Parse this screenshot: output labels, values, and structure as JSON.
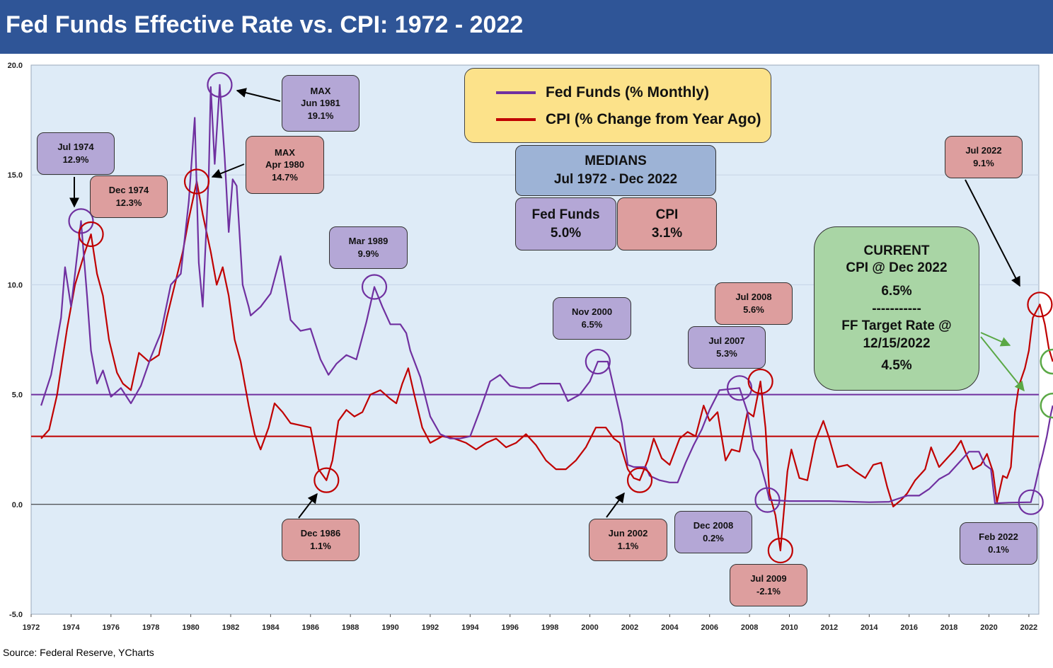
{
  "title": "Fed Funds Effective Rate vs. CPI: 1972 - 2022",
  "source": "Source: Federal Reserve, YCharts",
  "colors": {
    "title_bar": "#2f5597",
    "plot_bg": "#deebf7",
    "fed_funds": "#7030a0",
    "cpi": "#c00000",
    "green": "#5aa845"
  },
  "legend": {
    "fed_funds": "Fed Funds (% Monthly)",
    "cpi": "CPI (% Change from Year Ago)"
  },
  "medians": {
    "title_line1": "MEDIANS",
    "title_line2": "Jul 1972 - Dec 2022",
    "fed_label": "Fed Funds",
    "fed_value": "5.0%",
    "cpi_label": "CPI",
    "cpi_value": "3.1%"
  },
  "current": {
    "line1": "CURRENT",
    "line2": "CPI @ Dec 2022",
    "line3": "6.5%",
    "line4": "-----------",
    "line5": "FF Target Rate @",
    "line6": "12/15/2022",
    "line7": "4.5%"
  },
  "annotations": {
    "max_ff": {
      "l1": "MAX",
      "l2": "Jun 1981",
      "l3": "19.1%"
    },
    "max_cpi": {
      "l1": "MAX",
      "l2": "Apr 1980",
      "l3": "14.7%"
    },
    "jul1974": {
      "l1": "Jul 1974",
      "l2": "12.9%"
    },
    "dec1974": {
      "l1": "Dec 1974",
      "l2": "12.3%"
    },
    "mar1989": {
      "l1": "Mar 1989",
      "l2": "9.9%"
    },
    "dec1986": {
      "l1": "Dec 1986",
      "l2": "1.1%"
    },
    "nov2000": {
      "l1": "Nov 2000",
      "l2": "6.5%"
    },
    "jun2002": {
      "l1": "Jun 2002",
      "l2": "1.1%"
    },
    "jul2007": {
      "l1": "Jul 2007",
      "l2": "5.3%"
    },
    "jul2008": {
      "l1": "Jul  2008",
      "l2": "5.6%"
    },
    "dec2008": {
      "l1": "Dec 2008",
      "l2": "0.2%"
    },
    "jul2009": {
      "l1": "Jul  2009",
      "l2": "-2.1%"
    },
    "jul2022": {
      "l1": "Jul  2022",
      "l2": "9.1%"
    },
    "feb2022": {
      "l1": "Feb 2022",
      "l2": "0.1%"
    }
  },
  "chart_data": {
    "type": "line",
    "xlim": [
      1972,
      2022.5
    ],
    "ylim": [
      -5,
      20
    ],
    "y_ticks": [
      "-5.0",
      "0.0",
      "5.0",
      "10.0",
      "15.0",
      "20.0"
    ],
    "x_ticks": [
      "1972",
      "1974",
      "1976",
      "1978",
      "1980",
      "1982",
      "1984",
      "1986",
      "1988",
      "1990",
      "1992",
      "1994",
      "1996",
      "1998",
      "2000",
      "2002",
      "2004",
      "2006",
      "2008",
      "2010",
      "2012",
      "2014",
      "2016",
      "2018",
      "2020",
      "2022"
    ],
    "grid": true,
    "median_lines": [
      {
        "name": "Fed Funds median",
        "value": 5.0
      },
      {
        "name": "CPI median",
        "value": 3.1
      }
    ],
    "series": [
      {
        "name": "Fed Funds (% Monthly)",
        "points": [
          [
            1972.5,
            4.5
          ],
          [
            1973.0,
            5.9
          ],
          [
            1973.5,
            8.5
          ],
          [
            1973.7,
            10.8
          ],
          [
            1974.0,
            9.0
          ],
          [
            1974.2,
            10.5
          ],
          [
            1974.5,
            12.9
          ],
          [
            1974.8,
            9.5
          ],
          [
            1975.0,
            7.0
          ],
          [
            1975.3,
            5.5
          ],
          [
            1975.6,
            6.1
          ],
          [
            1976.0,
            4.9
          ],
          [
            1976.5,
            5.3
          ],
          [
            1977.0,
            4.6
          ],
          [
            1977.5,
            5.4
          ],
          [
            1978.0,
            6.7
          ],
          [
            1978.5,
            7.8
          ],
          [
            1979.0,
            10.0
          ],
          [
            1979.5,
            10.5
          ],
          [
            1979.9,
            13.8
          ],
          [
            1980.2,
            17.6
          ],
          [
            1980.4,
            11.0
          ],
          [
            1980.6,
            9.0
          ],
          [
            1980.9,
            15.0
          ],
          [
            1981.0,
            19.0
          ],
          [
            1981.2,
            15.5
          ],
          [
            1981.45,
            19.1
          ],
          [
            1981.7,
            15.8
          ],
          [
            1981.9,
            12.4
          ],
          [
            1982.1,
            14.8
          ],
          [
            1982.3,
            14.5
          ],
          [
            1982.6,
            10.0
          ],
          [
            1982.9,
            9.0
          ],
          [
            1983.0,
            8.6
          ],
          [
            1983.5,
            9.0
          ],
          [
            1984.0,
            9.6
          ],
          [
            1984.5,
            11.3
          ],
          [
            1985.0,
            8.4
          ],
          [
            1985.5,
            7.9
          ],
          [
            1986.0,
            8.0
          ],
          [
            1986.5,
            6.6
          ],
          [
            1986.9,
            5.9
          ],
          [
            1987.3,
            6.4
          ],
          [
            1987.8,
            6.8
          ],
          [
            1988.3,
            6.6
          ],
          [
            1988.8,
            8.3
          ],
          [
            1989.2,
            9.9
          ],
          [
            1989.6,
            9.0
          ],
          [
            1990.0,
            8.2
          ],
          [
            1990.5,
            8.2
          ],
          [
            1990.8,
            7.8
          ],
          [
            1991.0,
            7.0
          ],
          [
            1991.5,
            5.8
          ],
          [
            1992.0,
            4.0
          ],
          [
            1992.5,
            3.2
          ],
          [
            1993.0,
            3.0
          ],
          [
            1993.5,
            3.0
          ],
          [
            1994.0,
            3.1
          ],
          [
            1994.5,
            4.3
          ],
          [
            1995.0,
            5.6
          ],
          [
            1995.5,
            5.9
          ],
          [
            1996.0,
            5.4
          ],
          [
            1996.5,
            5.3
          ],
          [
            1997.0,
            5.3
          ],
          [
            1997.5,
            5.5
          ],
          [
            1998.0,
            5.5
          ],
          [
            1998.5,
            5.5
          ],
          [
            1998.9,
            4.7
          ],
          [
            1999.5,
            5.0
          ],
          [
            2000.0,
            5.6
          ],
          [
            2000.4,
            6.5
          ],
          [
            2000.9,
            6.5
          ],
          [
            2001.2,
            5.3
          ],
          [
            2001.6,
            3.7
          ],
          [
            2001.9,
            1.8
          ],
          [
            2002.2,
            1.7
          ],
          [
            2002.8,
            1.7
          ],
          [
            2003.0,
            1.3
          ],
          [
            2003.5,
            1.1
          ],
          [
            2004.0,
            1.0
          ],
          [
            2004.4,
            1.0
          ],
          [
            2004.8,
            1.9
          ],
          [
            2005.2,
            2.7
          ],
          [
            2005.6,
            3.4
          ],
          [
            2006.0,
            4.3
          ],
          [
            2006.5,
            5.2
          ],
          [
            2007.0,
            5.25
          ],
          [
            2007.5,
            5.3
          ],
          [
            2007.9,
            4.2
          ],
          [
            2008.2,
            2.5
          ],
          [
            2008.5,
            2.0
          ],
          [
            2008.8,
            1.0
          ],
          [
            2009.0,
            0.2
          ],
          [
            2010.0,
            0.15
          ],
          [
            2012.0,
            0.15
          ],
          [
            2014.0,
            0.1
          ],
          [
            2015.0,
            0.12
          ],
          [
            2015.9,
            0.4
          ],
          [
            2016.5,
            0.4
          ],
          [
            2017.0,
            0.7
          ],
          [
            2017.5,
            1.15
          ],
          [
            2018.0,
            1.4
          ],
          [
            2018.5,
            1.9
          ],
          [
            2019.0,
            2.4
          ],
          [
            2019.5,
            2.4
          ],
          [
            2019.8,
            1.8
          ],
          [
            2020.1,
            1.6
          ],
          [
            2020.3,
            0.05
          ],
          [
            2021.0,
            0.08
          ],
          [
            2022.1,
            0.1
          ],
          [
            2022.3,
            0.8
          ],
          [
            2022.5,
            1.6
          ],
          [
            2022.7,
            2.3
          ],
          [
            2022.9,
            3.1
          ],
          [
            2023.1,
            4.1
          ],
          [
            2023.2,
            4.5
          ]
        ]
      },
      {
        "name": "CPI (% Change from Year Ago)",
        "points": [
          [
            1972.5,
            3.0
          ],
          [
            1972.9,
            3.4
          ],
          [
            1973.3,
            5.0
          ],
          [
            1973.8,
            8.0
          ],
          [
            1974.2,
            10.0
          ],
          [
            1974.7,
            11.5
          ],
          [
            1975.0,
            12.3
          ],
          [
            1975.3,
            10.5
          ],
          [
            1975.6,
            9.5
          ],
          [
            1975.9,
            7.5
          ],
          [
            1976.3,
            6.0
          ],
          [
            1976.6,
            5.5
          ],
          [
            1977.0,
            5.2
          ],
          [
            1977.4,
            6.9
          ],
          [
            1977.9,
            6.5
          ],
          [
            1978.4,
            6.8
          ],
          [
            1978.8,
            8.5
          ],
          [
            1979.2,
            10.0
          ],
          [
            1979.6,
            11.5
          ],
          [
            1979.9,
            13.0
          ],
          [
            1980.3,
            14.7
          ],
          [
            1980.6,
            13.2
          ],
          [
            1981.0,
            11.5
          ],
          [
            1981.3,
            10.0
          ],
          [
            1981.6,
            10.8
          ],
          [
            1981.9,
            9.5
          ],
          [
            1982.2,
            7.5
          ],
          [
            1982.5,
            6.5
          ],
          [
            1982.9,
            4.5
          ],
          [
            1983.2,
            3.2
          ],
          [
            1983.5,
            2.5
          ],
          [
            1983.9,
            3.5
          ],
          [
            1984.2,
            4.6
          ],
          [
            1984.6,
            4.2
          ],
          [
            1985.0,
            3.7
          ],
          [
            1985.5,
            3.6
          ],
          [
            1986.0,
            3.5
          ],
          [
            1986.4,
            1.6
          ],
          [
            1986.8,
            1.1
          ],
          [
            1987.1,
            2.0
          ],
          [
            1987.4,
            3.8
          ],
          [
            1987.8,
            4.3
          ],
          [
            1988.2,
            4.0
          ],
          [
            1988.6,
            4.2
          ],
          [
            1989.0,
            5.0
          ],
          [
            1989.5,
            5.2
          ],
          [
            1990.0,
            4.8
          ],
          [
            1990.3,
            4.6
          ],
          [
            1990.6,
            5.5
          ],
          [
            1990.9,
            6.2
          ],
          [
            1991.2,
            5.0
          ],
          [
            1991.6,
            3.5
          ],
          [
            1992.0,
            2.8
          ],
          [
            1992.6,
            3.1
          ],
          [
            1993.2,
            3.0
          ],
          [
            1993.8,
            2.8
          ],
          [
            1994.3,
            2.5
          ],
          [
            1994.8,
            2.8
          ],
          [
            1995.3,
            3.0
          ],
          [
            1995.8,
            2.6
          ],
          [
            1996.3,
            2.8
          ],
          [
            1996.8,
            3.2
          ],
          [
            1997.3,
            2.7
          ],
          [
            1997.8,
            2.0
          ],
          [
            1998.3,
            1.6
          ],
          [
            1998.8,
            1.6
          ],
          [
            1999.3,
            2.0
          ],
          [
            1999.8,
            2.6
          ],
          [
            2000.3,
            3.5
          ],
          [
            2000.8,
            3.5
          ],
          [
            2001.2,
            3.0
          ],
          [
            2001.5,
            2.8
          ],
          [
            2001.9,
            1.6
          ],
          [
            2002.2,
            1.2
          ],
          [
            2002.5,
            1.1
          ],
          [
            2002.9,
            2.0
          ],
          [
            2003.2,
            3.0
          ],
          [
            2003.6,
            2.1
          ],
          [
            2004.0,
            1.8
          ],
          [
            2004.5,
            3.0
          ],
          [
            2004.9,
            3.3
          ],
          [
            2005.3,
            3.1
          ],
          [
            2005.7,
            4.5
          ],
          [
            2006.0,
            3.8
          ],
          [
            2006.4,
            4.2
          ],
          [
            2006.8,
            2.0
          ],
          [
            2007.1,
            2.5
          ],
          [
            2007.5,
            2.4
          ],
          [
            2007.9,
            4.2
          ],
          [
            2008.2,
            4.0
          ],
          [
            2008.55,
            5.6
          ],
          [
            2008.8,
            3.5
          ],
          [
            2009.0,
            0.5
          ],
          [
            2009.3,
            -0.5
          ],
          [
            2009.55,
            -2.1
          ],
          [
            2009.9,
            1.5
          ],
          [
            2010.1,
            2.5
          ],
          [
            2010.5,
            1.2
          ],
          [
            2010.9,
            1.1
          ],
          [
            2011.3,
            2.9
          ],
          [
            2011.7,
            3.8
          ],
          [
            2012.0,
            3.0
          ],
          [
            2012.4,
            1.7
          ],
          [
            2012.9,
            1.8
          ],
          [
            2013.3,
            1.5
          ],
          [
            2013.8,
            1.2
          ],
          [
            2014.2,
            1.8
          ],
          [
            2014.6,
            1.9
          ],
          [
            2014.9,
            0.8
          ],
          [
            2015.2,
            -0.1
          ],
          [
            2015.6,
            0.2
          ],
          [
            2015.9,
            0.5
          ],
          [
            2016.3,
            1.1
          ],
          [
            2016.8,
            1.6
          ],
          [
            2017.1,
            2.6
          ],
          [
            2017.5,
            1.7
          ],
          [
            2017.9,
            2.1
          ],
          [
            2018.3,
            2.5
          ],
          [
            2018.6,
            2.9
          ],
          [
            2018.9,
            2.2
          ],
          [
            2019.2,
            1.6
          ],
          [
            2019.6,
            1.8
          ],
          [
            2019.9,
            2.3
          ],
          [
            2020.2,
            1.5
          ],
          [
            2020.4,
            0.1
          ],
          [
            2020.7,
            1.3
          ],
          [
            2020.9,
            1.2
          ],
          [
            2021.1,
            1.7
          ],
          [
            2021.3,
            4.2
          ],
          [
            2021.5,
            5.4
          ],
          [
            2021.8,
            6.2
          ],
          [
            2022.0,
            7.0
          ],
          [
            2022.2,
            8.5
          ],
          [
            2022.55,
            9.1
          ],
          [
            2022.8,
            8.2
          ],
          [
            2023.0,
            7.1
          ],
          [
            2023.2,
            6.5
          ]
        ]
      }
    ]
  }
}
